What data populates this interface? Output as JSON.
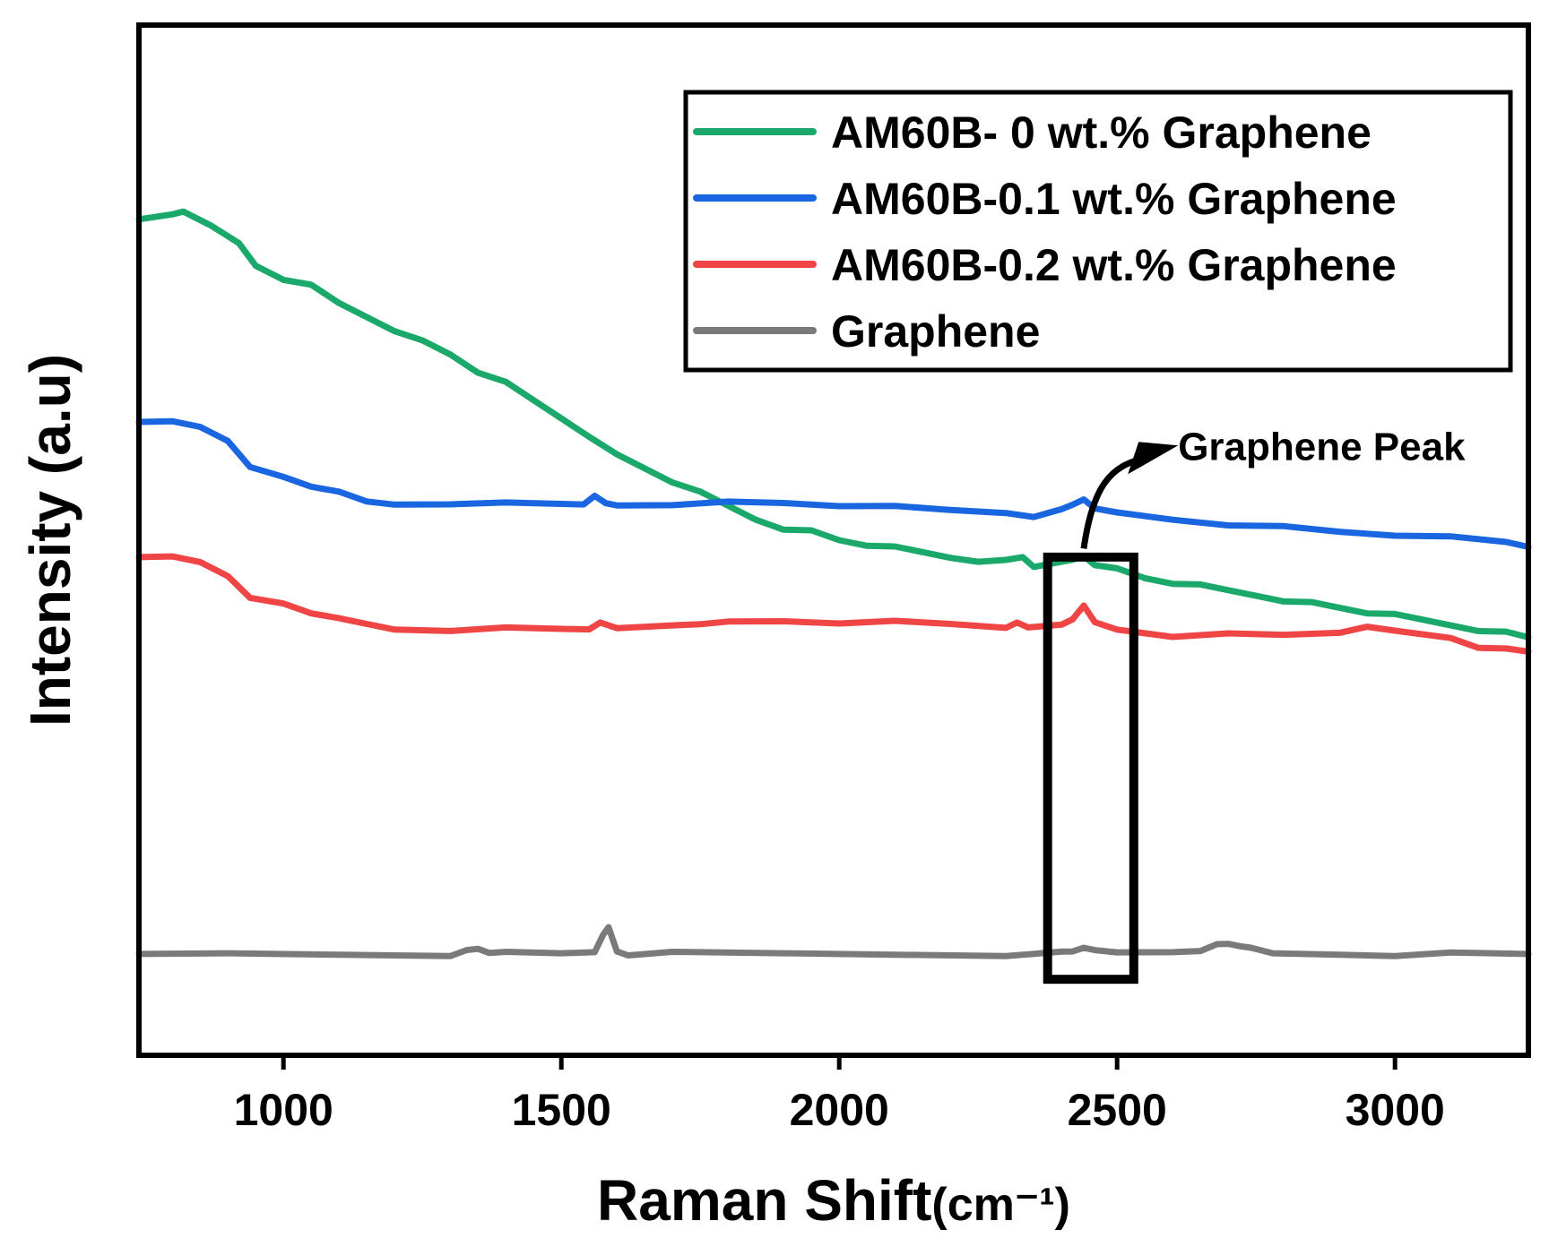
{
  "chart_data": {
    "type": "line",
    "title": "",
    "xlabel": "Raman Shift",
    "xlabel_unit": "(cm⁻¹)",
    "ylabel": "Intensity (a.u)",
    "xlim": [
      740,
      3240
    ],
    "ylim": [
      -0.12,
      1.1
    ],
    "x_ticks": [
      1000,
      1500,
      2000,
      2500,
      3000
    ],
    "y_ticks": [],
    "grid": false,
    "legend_position": "top-right",
    "annotation": {
      "text": "Graphene Peak",
      "box_x_range": [
        2375,
        2530
      ],
      "box_y_range": [
        -0.03,
        0.47
      ],
      "arrow_from": [
        2440,
        0.48
      ],
      "arrow_to": [
        2600,
        0.6
      ]
    },
    "series": [
      {
        "name": "AM60B- 0 wt.% Graphene",
        "color": "#1aa96a",
        "x": [
          740,
          800,
          820,
          870,
          920,
          950,
          1000,
          1050,
          1100,
          1150,
          1200,
          1250,
          1300,
          1350,
          1400,
          1450,
          1500,
          1550,
          1600,
          1650,
          1700,
          1750,
          1800,
          1850,
          1900,
          1950,
          2000,
          2050,
          2100,
          2150,
          2200,
          2250,
          2300,
          2330,
          2350,
          2400,
          2420,
          2440,
          2460,
          2500,
          2550,
          2600,
          2650,
          2700,
          2750,
          2800,
          2850,
          2900,
          2950,
          3000,
          3050,
          3100,
          3150,
          3200,
          3240
        ],
        "values": [
          0.87,
          0.875,
          0.88,
          0.865,
          0.84,
          0.815,
          0.8,
          0.79,
          0.77,
          0.755,
          0.74,
          0.725,
          0.71,
          0.69,
          0.675,
          0.655,
          0.635,
          0.615,
          0.59,
          0.575,
          0.56,
          0.545,
          0.53,
          0.515,
          0.505,
          0.5,
          0.49,
          0.485,
          0.48,
          0.475,
          0.47,
          0.467,
          0.465,
          0.47,
          0.46,
          0.462,
          0.466,
          0.472,
          0.463,
          0.455,
          0.445,
          0.44,
          0.435,
          0.43,
          0.425,
          0.42,
          0.415,
          0.41,
          0.405,
          0.4,
          0.395,
          0.39,
          0.385,
          0.38,
          0.375
        ]
      },
      {
        "name": "AM60B-0.1 wt.% Graphene",
        "color": "#1a66e0",
        "x": [
          740,
          800,
          850,
          900,
          940,
          1000,
          1050,
          1100,
          1150,
          1200,
          1300,
          1400,
          1500,
          1540,
          1560,
          1580,
          1600,
          1700,
          1800,
          1900,
          2000,
          2100,
          2200,
          2300,
          2350,
          2400,
          2420,
          2440,
          2460,
          2500,
          2600,
          2700,
          2800,
          2900,
          3000,
          3100,
          3200,
          3240
        ],
        "values": [
          0.63,
          0.63,
          0.625,
          0.61,
          0.575,
          0.565,
          0.555,
          0.545,
          0.535,
          0.533,
          0.535,
          0.533,
          0.533,
          0.534,
          0.54,
          0.533,
          0.532,
          0.534,
          0.534,
          0.534,
          0.532,
          0.528,
          0.525,
          0.523,
          0.52,
          0.525,
          0.532,
          0.54,
          0.525,
          0.522,
          0.515,
          0.51,
          0.505,
          0.5,
          0.497,
          0.492,
          0.487,
          0.482
        ]
      },
      {
        "name": "AM60B-0.2 wt.% Graphene",
        "color": "#f04545",
        "x": [
          740,
          800,
          850,
          900,
          940,
          1000,
          1050,
          1100,
          1150,
          1200,
          1300,
          1400,
          1500,
          1550,
          1570,
          1600,
          1700,
          1750,
          1800,
          1900,
          2000,
          2100,
          2200,
          2300,
          2320,
          2340,
          2400,
          2420,
          2440,
          2460,
          2500,
          2600,
          2700,
          2800,
          2900,
          2950,
          3000,
          3100,
          3150,
          3200,
          3240
        ],
        "values": [
          0.47,
          0.47,
          0.465,
          0.45,
          0.42,
          0.415,
          0.405,
          0.395,
          0.39,
          0.385,
          0.385,
          0.385,
          0.385,
          0.386,
          0.39,
          0.385,
          0.39,
          0.393,
          0.392,
          0.394,
          0.393,
          0.392,
          0.39,
          0.387,
          0.395,
          0.385,
          0.39,
          0.398,
          0.41,
          0.392,
          0.385,
          0.378,
          0.378,
          0.378,
          0.382,
          0.385,
          0.382,
          0.375,
          0.365,
          0.36,
          0.358
        ]
      },
      {
        "name": "Graphene",
        "color": "#7a7a7a",
        "x": [
          740,
          900,
          1100,
          1300,
          1330,
          1350,
          1370,
          1400,
          1500,
          1560,
          1575,
          1585,
          1600,
          1620,
          1700,
          1900,
          2100,
          2300,
          2400,
          2420,
          2440,
          2460,
          2500,
          2600,
          2650,
          2680,
          2700,
          2720,
          2740,
          2780,
          2900,
          3000,
          3100,
          3240
        ],
        "values": [
          0.0,
          0.0,
          0.0,
          0.0,
          0.003,
          0.006,
          0.003,
          0.0,
          0.0,
          0.003,
          0.025,
          0.03,
          0.003,
          0.0,
          0.0,
          0.0,
          0.0,
          0.0,
          0.001,
          0.003,
          0.009,
          0.002,
          0.001,
          0.003,
          0.006,
          0.01,
          0.012,
          0.011,
          0.005,
          0.0,
          0.0,
          0.0,
          0.0,
          0.0
        ]
      }
    ]
  }
}
